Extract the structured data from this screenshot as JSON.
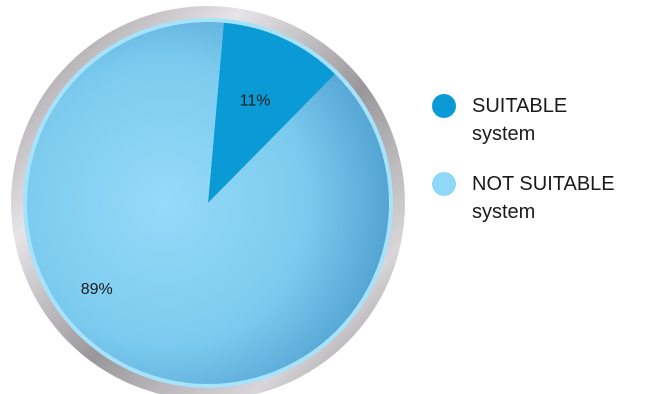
{
  "chart_data": {
    "type": "pie",
    "slices": [
      {
        "label": "SUITABLE system",
        "label_lines": [
          "SUITABLE",
          "system"
        ],
        "value": 11,
        "value_label": "11%",
        "color": "#0a9bd7"
      },
      {
        "label": "NOT SUITABLE system",
        "label_lines": [
          "NOT SUITABLE",
          "system"
        ],
        "value": 89,
        "value_label": "89%",
        "color": "#8fd8f7"
      }
    ],
    "legend_position": "right",
    "colors": {
      "ring": "#b7b4b8",
      "ring_inner": "#a6e3fb"
    }
  }
}
